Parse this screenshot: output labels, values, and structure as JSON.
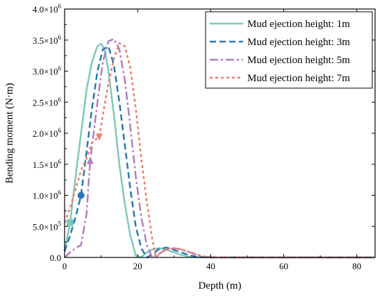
{
  "chart_data": {
    "type": "line",
    "title": "",
    "xlabel": "Depth (m)",
    "ylabel": "Bending moment (N·m)",
    "xlim": [
      0,
      85
    ],
    "ylim": [
      0,
      4000000
    ],
    "grid": false,
    "legend_position": "top-right",
    "x_ticks": [
      0,
      20,
      40,
      60,
      80
    ],
    "x_tick_labels": [
      "0",
      "20",
      "40",
      "60",
      "80"
    ],
    "y_ticks": [
      0,
      500000,
      1000000,
      1500000,
      2000000,
      2500000,
      3000000,
      3500000,
      4000000
    ],
    "y_tick_labels": [
      {
        "mant": "0.0",
        "exp": ""
      },
      {
        "mant": "5.0×10",
        "exp": "5"
      },
      {
        "mant": "1.0×10",
        "exp": "6"
      },
      {
        "mant": "1.5×10",
        "exp": "6"
      },
      {
        "mant": "2.0×10",
        "exp": "6"
      },
      {
        "mant": "2.5×10",
        "exp": "6"
      },
      {
        "mant": "3.0×10",
        "exp": "6"
      },
      {
        "mant": "3.5×10",
        "exp": "6"
      },
      {
        "mant": "4.0×10",
        "exp": "6"
      }
    ],
    "series": [
      {
        "name": "Mud ejection height: 1m",
        "color": "#7fc8b9",
        "dash": "",
        "marker": "square",
        "marker_at": [
          1.5,
          560000
        ],
        "x": [
          0,
          1.5,
          3,
          4.5,
          6,
          7.5,
          9,
          10,
          11,
          12,
          13.5,
          15,
          16.5,
          18,
          19.5,
          21,
          22,
          24,
          26,
          28,
          30,
          32,
          34,
          36,
          40,
          85
        ],
        "y": [
          100000,
          560000,
          1300000,
          2000000,
          2700000,
          3150000,
          3400000,
          3440000,
          3350000,
          3000000,
          2300000,
          1500000,
          850000,
          350000,
          30000,
          0,
          60000,
          130000,
          150000,
          120000,
          80000,
          40000,
          15000,
          5000,
          0,
          0
        ]
      },
      {
        "name": "Mud ejection height: 3m",
        "color": "#2a77b1",
        "dash": "9,5",
        "marker": "circle",
        "marker_at": [
          4.5,
          1000000
        ],
        "x": [
          0,
          1.5,
          3,
          4.5,
          6,
          7.5,
          9,
          10.5,
          12,
          13.5,
          15,
          16.5,
          18,
          19.5,
          21,
          22.5,
          24,
          26,
          28,
          30,
          32,
          34,
          36,
          40,
          85
        ],
        "y": [
          100000,
          350000,
          650000,
          1000000,
          1700000,
          2400000,
          3000000,
          3350000,
          3400000,
          3100000,
          2500000,
          1800000,
          1100000,
          500000,
          150000,
          0,
          50000,
          140000,
          160000,
          120000,
          80000,
          40000,
          10000,
          0,
          0
        ]
      },
      {
        "name": "Mud ejection height: 5m",
        "color": "#b27cc2",
        "dash": "12,4,3,4",
        "marker": "triangle-up",
        "marker_at": [
          7,
          1550000
        ],
        "x": [
          0,
          1.5,
          3,
          4.5,
          6,
          7,
          9,
          10.5,
          12,
          13.5,
          15,
          16.5,
          18,
          19.5,
          21,
          22.5,
          24,
          26,
          28,
          30,
          32,
          34,
          36,
          38,
          42,
          85
        ],
        "y": [
          0,
          80000,
          150000,
          200000,
          700000,
          1550000,
          2500000,
          3150000,
          3480000,
          3520000,
          3350000,
          2850000,
          2100000,
          1300000,
          650000,
          200000,
          0,
          60000,
          140000,
          150000,
          130000,
          90000,
          40000,
          10000,
          0,
          0
        ]
      },
      {
        "name": "Mud ejection height: 7m",
        "color": "#f07b69",
        "dash": "4,4",
        "marker": "triangle-down",
        "marker_at": [
          9.5,
          1950000
        ],
        "x": [
          0,
          1.5,
          3,
          4.5,
          6,
          7.5,
          9.5,
          10.5,
          12,
          13.5,
          15,
          16.5,
          18,
          19.5,
          21,
          22.5,
          24,
          25,
          26,
          28,
          30,
          32,
          34,
          36,
          38,
          42,
          85
        ],
        "y": [
          560000,
          800000,
          1100000,
          1400000,
          1600000,
          1850000,
          1950000,
          2300000,
          2800000,
          3200000,
          3450000,
          3400000,
          3050000,
          2400000,
          1600000,
          900000,
          300000,
          0,
          60000,
          130000,
          150000,
          130000,
          90000,
          50000,
          20000,
          0,
          0
        ]
      }
    ]
  }
}
